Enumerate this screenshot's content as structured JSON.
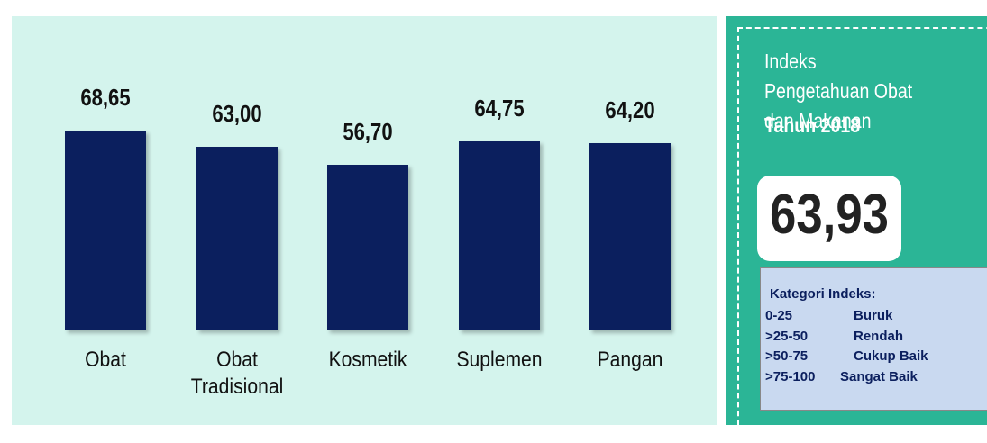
{
  "chart_data": {
    "type": "bar",
    "categories": [
      "Obat",
      "Obat Tradisional",
      "Kosmetik",
      "Suplemen",
      "Pangan"
    ],
    "values": [
      68.65,
      63.0,
      56.7,
      64.75,
      64.2
    ],
    "value_labels": [
      "68,65",
      "63,00",
      "56,70",
      "64,75",
      "64,20"
    ],
    "color": "#0b1f5e"
  },
  "panel": {
    "title": "Indeks Pengetahuan Obat dan Makanan",
    "year": "Tahun 2018",
    "index_value": "63,93",
    "legend": {
      "title": "Kategori Indeks:",
      "rows": [
        [
          "0-25",
          "Buruk"
        ],
        [
          ">25-50",
          "Rendah"
        ],
        [
          ">50-75",
          "Cukup Baik"
        ],
        [
          ">75-100",
          "Sangat Baik"
        ]
      ]
    }
  }
}
